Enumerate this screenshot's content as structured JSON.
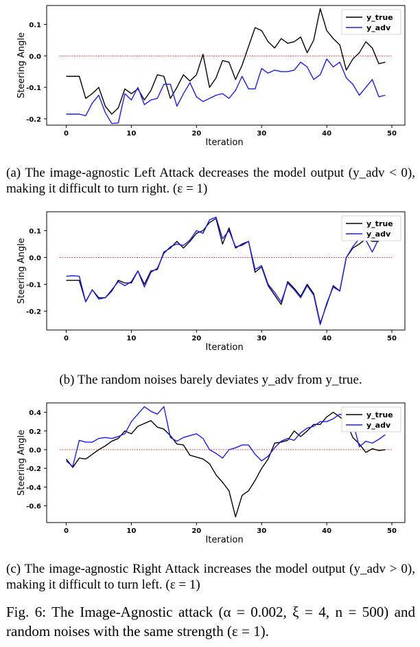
{
  "chart_data": [
    {
      "type": "line",
      "panel": "a",
      "xlabel": "Iteration",
      "ylabel": "Steering Angle",
      "xlim": [
        -3,
        52
      ],
      "ylim": [
        -0.22,
        0.16
      ],
      "xticks": [
        0,
        10,
        20,
        30,
        40,
        50
      ],
      "yticks": [
        -0.2,
        -0.1,
        0.0,
        0.1
      ],
      "ytick_labels": [
        "-0.2",
        "-0.1",
        "0.0",
        "0.1"
      ],
      "reference_line": 0.0,
      "legend_position": "top-right",
      "series": [
        {
          "name": "y_true",
          "color": "#000000",
          "x": [
            0,
            1,
            2,
            3,
            4,
            5,
            6,
            7,
            8,
            9,
            10,
            11,
            12,
            13,
            14,
            15,
            16,
            17,
            18,
            19,
            20,
            21,
            22,
            23,
            24,
            25,
            26,
            27,
            28,
            29,
            30,
            31,
            32,
            33,
            34,
            35,
            36,
            37,
            38,
            39,
            40,
            41,
            42,
            43,
            44,
            45,
            46,
            47,
            48,
            49
          ],
          "values": [
            -0.065,
            -0.065,
            -0.065,
            -0.135,
            -0.12,
            -0.1,
            -0.16,
            -0.185,
            -0.165,
            -0.105,
            -0.12,
            -0.105,
            -0.14,
            -0.11,
            -0.06,
            -0.065,
            -0.135,
            -0.1,
            -0.06,
            -0.08,
            -0.06,
            0.005,
            -0.1,
            -0.07,
            -0.015,
            -0.02,
            -0.075,
            -0.03,
            0.03,
            0.09,
            0.08,
            0.045,
            0.025,
            0.055,
            0.04,
            0.045,
            0.06,
            0.01,
            0.05,
            0.15,
            0.08,
            0.055,
            0.035,
            -0.045,
            -0.01,
            0.01,
            0.045,
            0.025,
            -0.025,
            -0.02
          ]
        },
        {
          "name": "y_adv",
          "color": "#1a1aff",
          "x": [
            0,
            1,
            2,
            3,
            4,
            5,
            6,
            7,
            8,
            9,
            10,
            11,
            12,
            13,
            14,
            15,
            16,
            17,
            18,
            19,
            20,
            21,
            22,
            23,
            24,
            25,
            26,
            27,
            28,
            29,
            30,
            31,
            32,
            33,
            34,
            35,
            36,
            37,
            38,
            39,
            40,
            41,
            42,
            43,
            44,
            45,
            46,
            47,
            48,
            49
          ],
          "values": [
            -0.185,
            -0.185,
            -0.185,
            -0.19,
            -0.15,
            -0.125,
            -0.18,
            -0.215,
            -0.213,
            -0.12,
            -0.14,
            -0.1,
            -0.155,
            -0.14,
            -0.135,
            -0.09,
            -0.09,
            -0.16,
            -0.12,
            -0.085,
            -0.13,
            -0.145,
            -0.135,
            -0.125,
            -0.12,
            -0.135,
            -0.11,
            -0.065,
            -0.105,
            -0.105,
            -0.04,
            -0.055,
            -0.045,
            -0.05,
            -0.05,
            -0.045,
            -0.02,
            -0.035,
            -0.075,
            -0.06,
            -0.01,
            -0.035,
            -0.02,
            -0.07,
            -0.09,
            -0.125,
            -0.1,
            -0.075,
            -0.13,
            -0.125
          ]
        }
      ]
    },
    {
      "type": "line",
      "panel": "b",
      "xlabel": "Iteration",
      "ylabel": "Steering Angle",
      "xlim": [
        -3,
        52
      ],
      "ylim": [
        -0.27,
        0.17
      ],
      "xticks": [
        0,
        10,
        20,
        30,
        40,
        50
      ],
      "yticks": [
        -0.2,
        -0.1,
        0.0,
        0.1
      ],
      "ytick_labels": [
        "-0.2",
        "-0.1",
        "0.0",
        "0.1"
      ],
      "reference_line": 0.0,
      "legend_position": "top-right",
      "series": [
        {
          "name": "y_true",
          "color": "#000000",
          "x": [
            0,
            1,
            2,
            3,
            4,
            5,
            6,
            7,
            8,
            9,
            10,
            11,
            12,
            13,
            14,
            15,
            16,
            17,
            18,
            19,
            20,
            21,
            22,
            23,
            24,
            25,
            26,
            27,
            28,
            29,
            30,
            31,
            32,
            33,
            34,
            35,
            36,
            37,
            38,
            39,
            40,
            41,
            42,
            43,
            44,
            45,
            46,
            47,
            48
          ],
          "values": [
            -0.085,
            -0.085,
            -0.085,
            -0.165,
            -0.12,
            -0.15,
            -0.15,
            -0.125,
            -0.085,
            -0.095,
            -0.095,
            -0.05,
            -0.1,
            -0.05,
            -0.045,
            0.02,
            0.035,
            0.06,
            0.035,
            0.06,
            0.09,
            0.1,
            0.13,
            0.145,
            0.05,
            0.11,
            0.035,
            0.05,
            0.06,
            -0.055,
            -0.035,
            -0.105,
            -0.14,
            -0.175,
            -0.09,
            -0.115,
            -0.145,
            -0.1,
            -0.135,
            -0.245,
            -0.175,
            -0.105,
            -0.125,
            0.0,
            0.035,
            0.05,
            0.07,
            0.06,
            0.06
          ]
        },
        {
          "name": "y_adv",
          "color": "#1a1aff",
          "x": [
            0,
            1,
            2,
            3,
            4,
            5,
            6,
            7,
            8,
            9,
            10,
            11,
            12,
            13,
            14,
            15,
            16,
            17,
            18,
            19,
            20,
            21,
            22,
            23,
            24,
            25,
            26,
            27,
            28,
            29,
            30,
            31,
            32,
            33,
            34,
            35,
            36,
            37,
            38,
            39,
            40,
            41,
            42,
            43,
            44,
            45,
            46,
            47,
            48
          ],
          "values": [
            -0.07,
            -0.068,
            -0.07,
            -0.165,
            -0.12,
            -0.155,
            -0.15,
            -0.12,
            -0.09,
            -0.105,
            -0.09,
            -0.05,
            -0.11,
            -0.055,
            -0.04,
            0.015,
            0.04,
            0.05,
            0.045,
            0.065,
            0.1,
            0.09,
            0.14,
            0.15,
            0.07,
            0.1,
            0.04,
            0.045,
            0.06,
            -0.045,
            -0.03,
            -0.1,
            -0.13,
            -0.165,
            -0.095,
            -0.12,
            -0.15,
            -0.105,
            -0.14,
            -0.25,
            -0.17,
            -0.11,
            -0.125,
            0.0,
            0.04,
            0.07,
            0.065,
            0.02,
            0.07
          ]
        }
      ]
    },
    {
      "type": "line",
      "panel": "c",
      "xlabel": "Iteration",
      "ylabel": "Steering Angle",
      "xlim": [
        -3,
        52
      ],
      "ylim": [
        -0.78,
        0.5
      ],
      "xticks": [
        0,
        10,
        20,
        30,
        40,
        50
      ],
      "yticks": [
        -0.6,
        -0.4,
        -0.2,
        0.0,
        0.2,
        0.4
      ],
      "ytick_labels": [
        "-0.6",
        "-0.4",
        "-0.2",
        "0.0",
        "0.2",
        "0.4"
      ],
      "reference_line": 0.0,
      "legend_position": "top-right",
      "series": [
        {
          "name": "y_true",
          "color": "#000000",
          "x": [
            0,
            1,
            2,
            3,
            4,
            5,
            6,
            7,
            8,
            9,
            10,
            11,
            12,
            13,
            14,
            15,
            16,
            17,
            18,
            19,
            20,
            21,
            22,
            23,
            24,
            25,
            26,
            27,
            28,
            29,
            30,
            31,
            32,
            33,
            34,
            35,
            36,
            37,
            38,
            39,
            40,
            41,
            42,
            43,
            44,
            45,
            46,
            47,
            48,
            49
          ],
          "values": [
            -0.1,
            -0.19,
            -0.09,
            -0.1,
            -0.05,
            0.0,
            0.04,
            0.09,
            0.12,
            0.2,
            0.17,
            0.25,
            0.28,
            0.31,
            0.24,
            0.22,
            0.15,
            0.06,
            0.05,
            -0.06,
            -0.08,
            -0.1,
            -0.15,
            -0.27,
            -0.35,
            -0.44,
            -0.72,
            -0.49,
            -0.44,
            -0.33,
            -0.2,
            -0.1,
            0.07,
            0.08,
            0.1,
            0.2,
            0.14,
            0.2,
            0.27,
            0.27,
            0.35,
            0.4,
            0.35,
            0.3,
            0.13,
            0.06,
            -0.03,
            0.01,
            -0.01,
            0.0
          ]
        },
        {
          "name": "y_adv",
          "color": "#1a1aff",
          "x": [
            0,
            1,
            2,
            3,
            4,
            5,
            6,
            7,
            8,
            9,
            10,
            11,
            12,
            13,
            14,
            15,
            16,
            17,
            18,
            19,
            20,
            21,
            22,
            23,
            24,
            25,
            26,
            27,
            28,
            29,
            30,
            31,
            32,
            33,
            34,
            35,
            36,
            37,
            38,
            39,
            40,
            41,
            42,
            43,
            44,
            45,
            46,
            47,
            48,
            49
          ],
          "values": [
            -0.12,
            -0.18,
            0.1,
            0.08,
            0.08,
            0.12,
            0.13,
            0.12,
            0.14,
            0.17,
            0.3,
            0.38,
            0.46,
            0.41,
            0.38,
            0.46,
            0.13,
            0.09,
            0.13,
            0.15,
            0.17,
            0.12,
            0.0,
            -0.04,
            -0.09,
            0.0,
            0.02,
            0.05,
            0.05,
            -0.05,
            -0.12,
            -0.07,
            0.02,
            0.09,
            0.12,
            0.1,
            0.18,
            0.23,
            0.25,
            0.3,
            0.3,
            0.33,
            0.38,
            0.35,
            0.3,
            0.03,
            0.09,
            0.07,
            0.11,
            0.16
          ]
        }
      ]
    }
  ],
  "captions": {
    "a": "(a) The image-agnostic Left Attack decreases the model output (y_adv < 0), making it difficult to turn right. (ε = 1)",
    "b": "(b) The random noises barely deviates y_adv from y_true.",
    "c": "(c) The image-agnostic Right Attack increases the model output (y_adv > 0), making it difficult to turn left. (ε = 1)"
  },
  "figure_caption": "Fig. 6: The Image-Agnostic attack (α = 0.002, ξ = 4, n = 500) and random noises with the same strength (ε = 1)."
}
